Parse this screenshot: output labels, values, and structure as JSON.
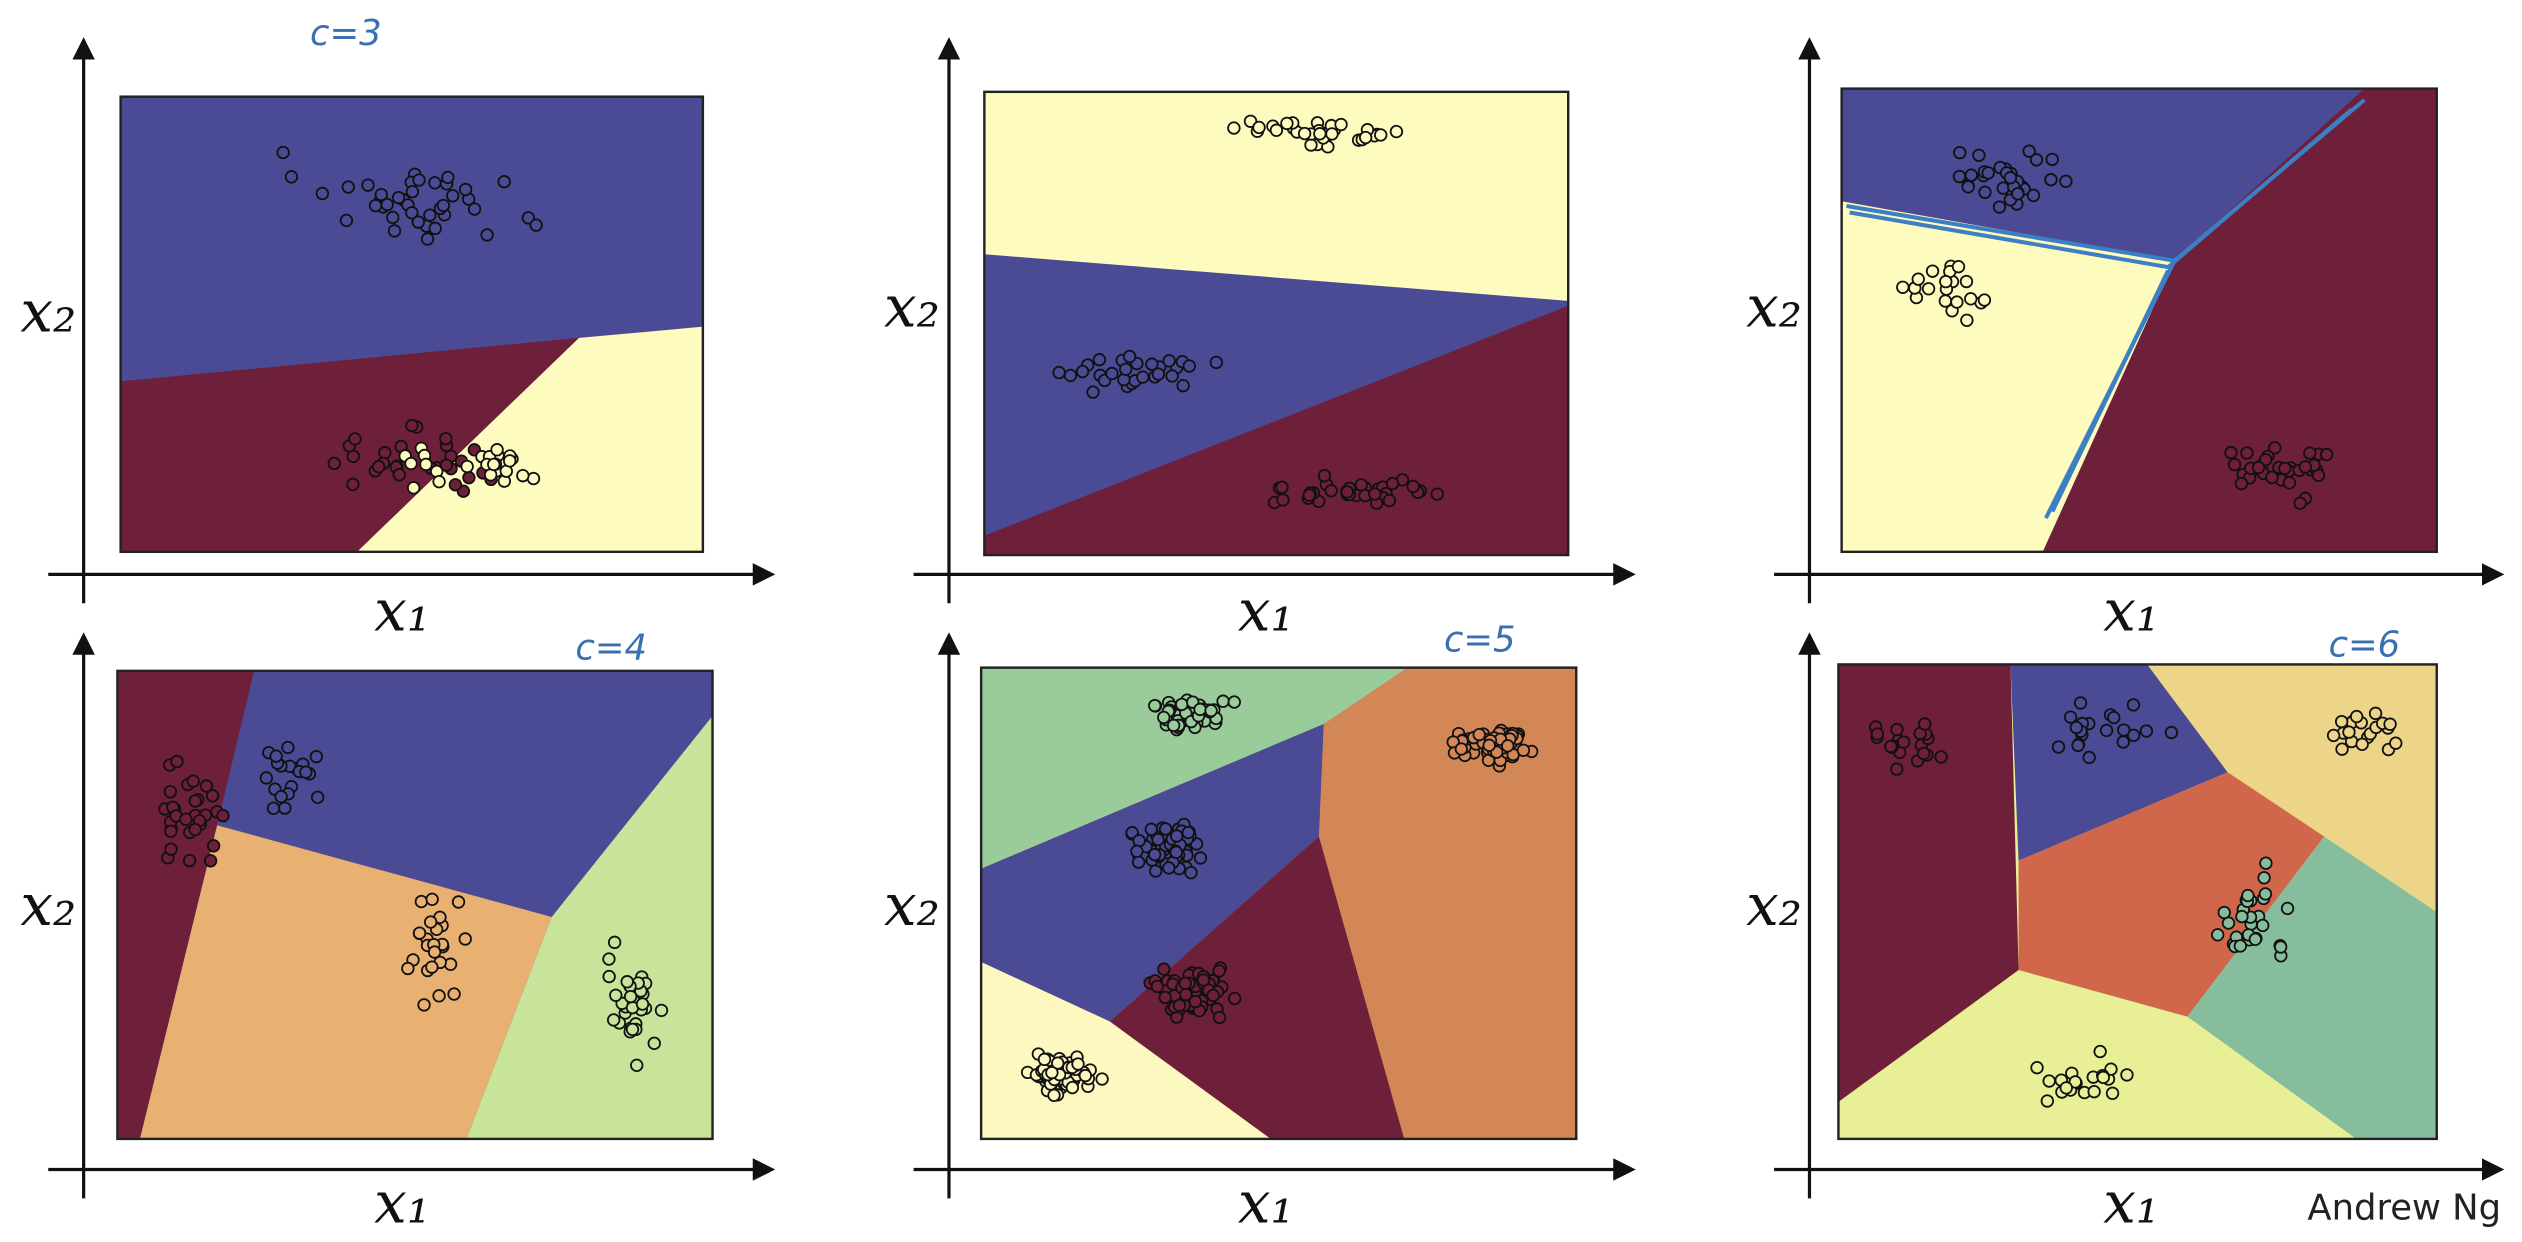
{
  "panels": [
    {
      "x_label": "x₁",
      "y_label": "x₂",
      "annotation": "c=3"
    },
    {
      "x_label": "x₁",
      "y_label": "x₂"
    },
    {
      "x_label": "x₁",
      "y_label": "x₂"
    },
    {
      "x_label": "x₁",
      "y_label": "x₂",
      "annotation": "c=4"
    },
    {
      "x_label": "x₁",
      "y_label": "x₂",
      "annotation": "c=5"
    },
    {
      "x_label": "x₁",
      "y_label": "x₂",
      "annotation": "c=6"
    }
  ],
  "footer": {
    "author": "Andrew Ng"
  }
}
